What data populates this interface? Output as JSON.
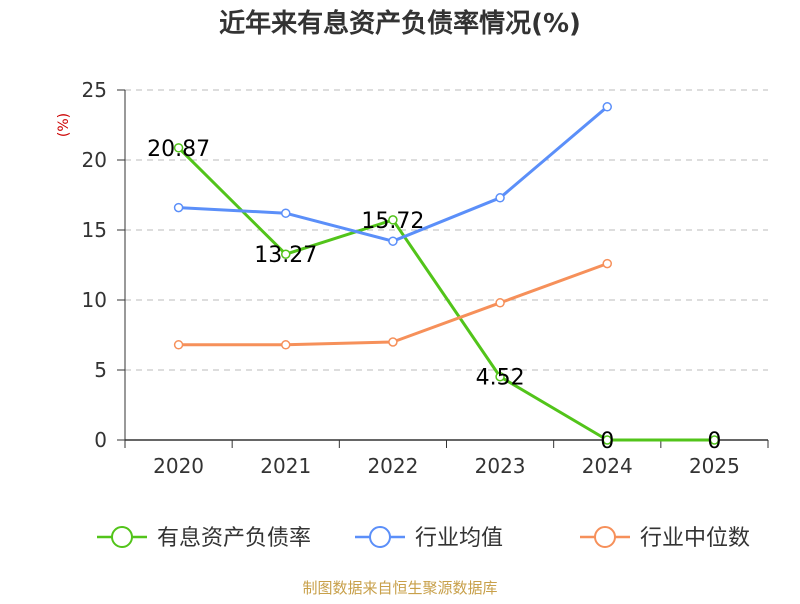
{
  "chart_data": {
    "type": "line",
    "title": "近年来有息资产负债率情况(%)",
    "ylabel": "(%)",
    "categories": [
      "2020",
      "2021",
      "2022",
      "2023",
      "2024",
      "2025"
    ],
    "ylim": [
      0,
      25
    ],
    "yticks": [
      "0",
      "5",
      "10",
      "15",
      "20",
      "25"
    ],
    "grid": true,
    "legend_position": "bottom",
    "series": [
      {
        "name": "有息资产负债率",
        "color": "#52c41a",
        "values": [
          20.87,
          13.27,
          15.72,
          4.52,
          0,
          0
        ],
        "labels": [
          "20.87",
          "13.27",
          "15.72",
          "4.52",
          "0",
          "0"
        ]
      },
      {
        "name": "行业均值",
        "color": "#5b8ff9",
        "values": [
          16.6,
          16.2,
          14.2,
          17.3,
          23.8,
          null
        ]
      },
      {
        "name": "行业中位数",
        "color": "#f6905a",
        "values": [
          6.8,
          6.8,
          7.0,
          9.8,
          12.6,
          null
        ]
      }
    ]
  },
  "source": "制图数据来自恒生聚源数据库"
}
